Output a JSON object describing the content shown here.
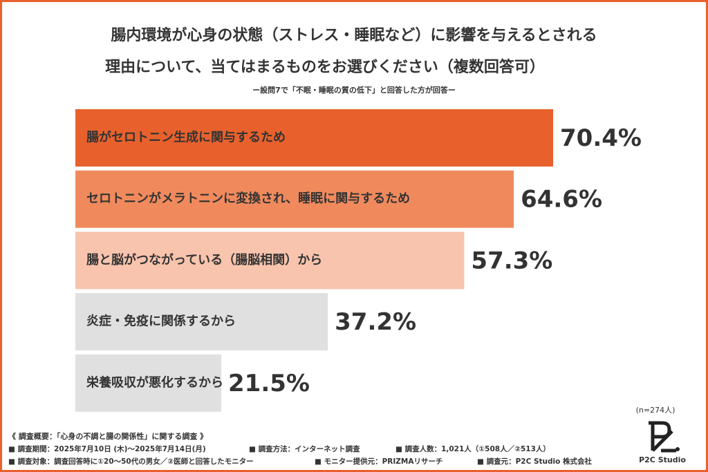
{
  "chart_data": {
    "type": "bar",
    "orientation": "horizontal",
    "title": [
      "腸内環境が心身の状態（ストレス・睡眠など）に影響を与えるとされる",
      "理由について、当てはまるものをお選びください（複数回答可）"
    ],
    "subtitle": "ー設問7で「不眠・睡眠の質の低下」と回答した方が回答ー",
    "categories": [
      "腸がセロトニン生成に関与するため",
      "セロトニンがメラトニンに変換され、睡眠に関与するため",
      "腸と脳がつながっている（腸脳相関）から",
      "炎症・免疫に関係するから",
      "栄養吸収が悪化するから"
    ],
    "values": [
      70.4,
      64.6,
      57.3,
      37.2,
      21.5
    ],
    "value_labels": [
      "70.4%",
      "64.6%",
      "57.3%",
      "37.2%",
      "21.5%"
    ],
    "colors": [
      "#e8612c",
      "#f08a5d",
      "#f9c4ad",
      "#e0e0e0",
      "#e0e0e0"
    ],
    "category_label_colors": [
      "#ffffff",
      "#ffffff",
      "#ffffff",
      "#555555",
      "#555555"
    ],
    "value_label_colors": [
      "#e8612c",
      "#f08a5d",
      "#f9bca0",
      "#555555",
      "#555555"
    ],
    "note": "(n=274人)",
    "survey_title": "《 調査概要：「心身の不調と腸の関係性」に関する調査 》",
    "survey_items": [
      [
        "■ 調査期間：2025年7月10日 (木)〜2025年7月14日(月)",
        "■ 調査方法：インターネット調査",
        "■ 調査人数：1,021人（①508人／②513人）"
      ],
      [
        "■ 調査対象：調査回答時に①20〜50代の男女／②医師と回答したモニター",
        "■ モニター提供元：PRIZMAリサーチ",
        "■ 調査元：P2C Studio 株式会社"
      ]
    ],
    "logo": "P2C Studio"
  }
}
